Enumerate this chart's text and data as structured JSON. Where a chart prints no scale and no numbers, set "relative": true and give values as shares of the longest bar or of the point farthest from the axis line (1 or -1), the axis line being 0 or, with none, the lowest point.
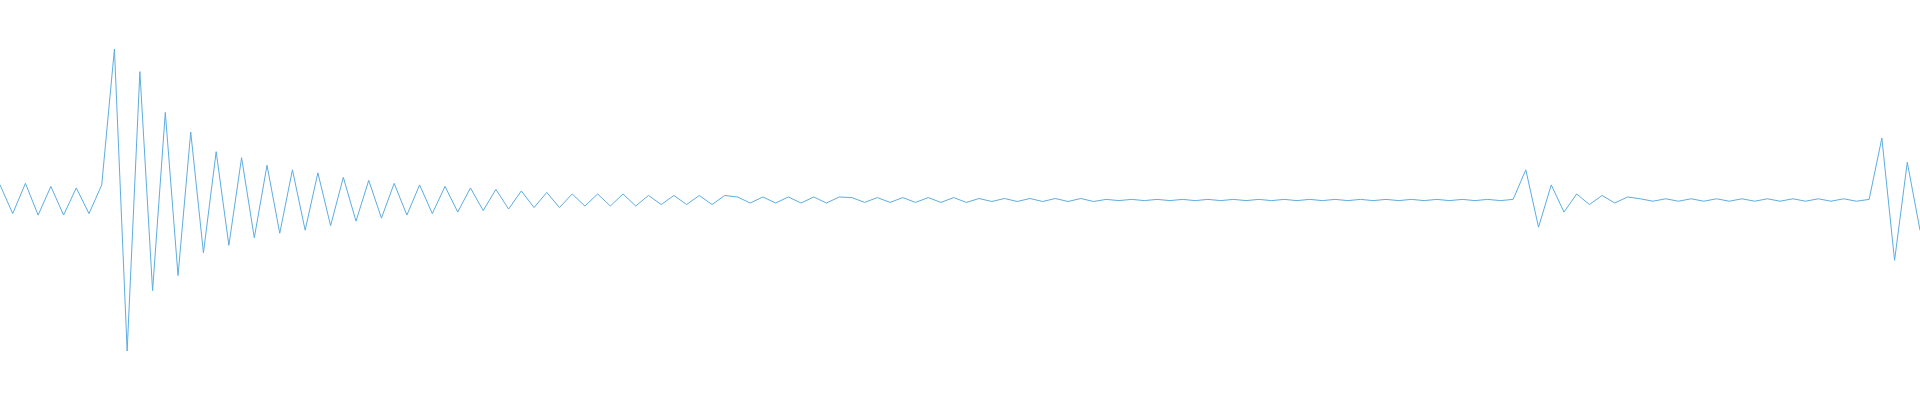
{
  "chart_data": {
    "type": "line",
    "relative": true,
    "legend": false,
    "marker": "none",
    "categories": [
      null,
      null,
      null,
      null,
      null,
      null,
      null,
      null,
      null,
      null,
      null,
      null,
      null,
      null,
      null,
      null,
      null,
      null,
      null,
      null,
      null,
      null,
      null,
      null,
      null,
      null,
      null,
      null,
      null,
      null,
      null,
      null,
      null,
      null,
      null,
      null,
      null,
      null,
      null,
      null,
      null,
      null,
      null,
      null,
      null,
      null,
      null,
      null,
      null,
      null,
      null,
      null,
      null,
      null,
      null,
      null,
      null,
      null,
      null,
      null,
      null,
      null,
      null,
      null,
      null,
      null,
      null,
      null,
      null,
      null,
      null,
      null,
      null,
      null,
      null,
      null,
      null,
      null,
      null,
      null,
      null,
      null,
      null,
      null,
      null,
      null,
      null,
      null,
      null,
      null,
      null,
      null,
      null,
      null,
      null,
      null,
      null,
      null,
      null,
      null,
      null,
      null,
      null,
      null,
      null,
      null,
      null,
      null,
      null,
      null,
      null,
      null,
      null,
      null,
      null,
      null,
      null,
      null,
      null,
      null,
      null,
      null,
      null,
      null,
      null,
      null,
      null,
      null,
      null,
      null,
      null,
      null,
      null,
      null,
      null,
      null,
      null,
      null,
      null,
      null,
      null,
      null,
      null,
      null,
      null,
      null,
      null,
      null,
      null,
      null,
      null,
      null
    ],
    "series": [
      {
        "color": "#5dade2",
        "values": [
          0.55,
          0.455,
          0.555,
          0.45,
          0.545,
          0.45,
          0.54,
          0.455,
          0.55,
          1,
          0,
          0.925,
          0.2,
          0.79,
          0.25,
          0.725,
          0.325,
          0.66,
          0.35,
          0.64,
          0.375,
          0.615,
          0.39,
          0.6,
          0.4,
          0.59,
          0.415,
          0.575,
          0.43,
          0.565,
          0.44,
          0.555,
          0.45,
          0.55,
          0.455,
          0.545,
          0.46,
          0.54,
          0.465,
          0.535,
          0.47,
          0.53,
          0.475,
          0.525,
          0.475,
          0.52,
          0.48,
          0.52,
          0.48,
          0.52,
          0.48,
          0.515,
          0.485,
          0.515,
          0.485,
          0.515,
          0.485,
          0.515,
          0.51,
          0.49,
          0.51,
          0.49,
          0.51,
          0.49,
          0.51,
          0.49,
          0.51,
          0.508,
          0.492,
          0.508,
          0.492,
          0.508,
          0.492,
          0.508,
          0.492,
          0.508,
          0.492,
          0.505,
          0.495,
          0.505,
          0.495,
          0.505,
          0.495,
          0.505,
          0.495,
          0.505,
          0.495,
          0.502,
          0.498,
          0.502,
          0.498,
          0.502,
          0.498,
          0.502,
          0.498,
          0.502,
          0.498,
          0.502,
          0.498,
          0.502,
          0.498,
          0.502,
          0.498,
          0.502,
          0.498,
          0.502,
          0.498,
          0.502,
          0.498,
          0.502,
          0.498,
          0.502,
          0.498,
          0.502,
          0.498,
          0.502,
          0.498,
          0.502,
          0.498,
          0.502,
          0.6,
          0.41,
          0.55,
          0.46,
          0.52,
          0.485,
          0.515,
          0.49,
          0.51,
          0.504,
          0.496,
          0.504,
          0.496,
          0.504,
          0.496,
          0.504,
          0.496,
          0.504,
          0.496,
          0.504,
          0.496,
          0.504,
          0.496,
          0.504,
          0.496,
          0.504,
          0.496,
          0.502,
          0.705,
          0.3,
          0.625,
          0.4
        ]
      }
    ]
  }
}
